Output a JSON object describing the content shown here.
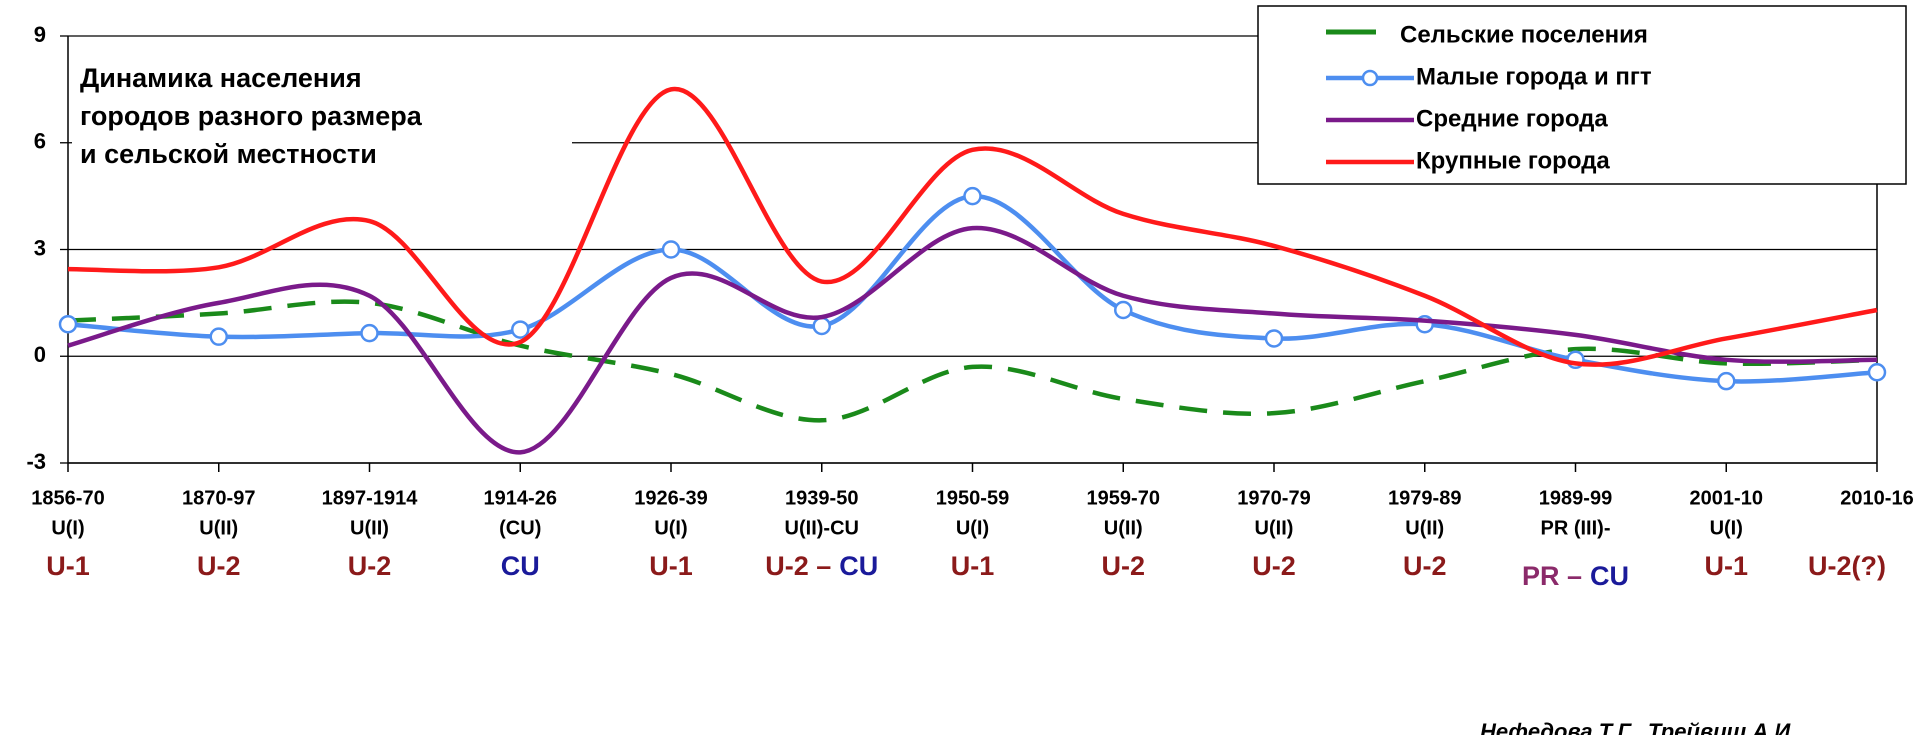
{
  "chart_data": {
    "type": "line",
    "title": [
      "Динамика населения",
      "городов разного размера",
      "и сельской местности"
    ],
    "categories": [
      "1856-70",
      "1870-97",
      "1897-1914",
      "1914-26",
      "1926-39",
      "1939-50",
      "1950-59",
      "1959-70",
      "1970-79",
      "1979-89",
      "1989-99",
      "2001-10",
      "2010-16"
    ],
    "type_labels": [
      "U(I)",
      "U(II)",
      "U(II)",
      "(CU)",
      "U(I)",
      "U(II)-CU",
      "U(I)",
      "U(II)",
      "U(II)",
      "U(II)",
      "PR (III)-",
      "U(I)",
      null
    ],
    "phase_labels": [
      [
        {
          "text": "U-1",
          "color": "#8b1a1a"
        }
      ],
      [
        {
          "text": "U-2",
          "color": "#8b1a1a"
        }
      ],
      [
        {
          "text": "U-2",
          "color": "#8b1a1a"
        }
      ],
      [
        {
          "text": "CU",
          "color": "#1a1a9a"
        }
      ],
      [
        {
          "text": "U-1",
          "color": "#8b1a1a"
        }
      ],
      [
        {
          "text": "U-2 –",
          "color": "#8b1a1a"
        },
        {
          "text": "CU",
          "color": "#1a1a9a"
        }
      ],
      [
        {
          "text": "U-1",
          "color": "#8b1a1a"
        }
      ],
      [
        {
          "text": "U-2",
          "color": "#8b1a1a"
        }
      ],
      [
        {
          "text": "U-2",
          "color": "#8b1a1a"
        }
      ],
      [
        {
          "text": "U-2",
          "color": "#8b1a1a"
        }
      ],
      [
        {
          "text": "PR –",
          "color": "#8b2a6a"
        },
        {
          "text": "CU",
          "color": "#1a1a9a"
        }
      ],
      [
        {
          "text": "U-1",
          "color": "#8b1a1a"
        }
      ],
      [
        {
          "text": "U-2(?)",
          "color": "#8b1a1a"
        }
      ]
    ],
    "series": [
      {
        "name": "Сельские поселения",
        "color": "#1a8a1a",
        "dashed": true,
        "markers": false,
        "values": [
          1.0,
          1.2,
          1.5,
          0.3,
          -0.5,
          -1.8,
          -0.3,
          -1.2,
          -1.6,
          -0.7,
          0.2,
          -0.2,
          -0.1
        ]
      },
      {
        "name": "Малые города и пгт",
        "color": "#4d8ef0",
        "dashed": false,
        "markers": true,
        "values": [
          0.9,
          0.55,
          0.65,
          0.75,
          3.0,
          0.85,
          4.5,
          1.3,
          0.5,
          0.9,
          -0.1,
          -0.7,
          -0.45
        ]
      },
      {
        "name": "Средние города",
        "color": "#7a1a8a",
        "dashed": false,
        "markers": false,
        "values": [
          0.3,
          1.5,
          1.7,
          -2.7,
          2.2,
          1.1,
          3.6,
          1.7,
          1.2,
          1.0,
          0.6,
          -0.1,
          -0.1
        ]
      },
      {
        "name": "Крупные города",
        "color": "#ff1a1a",
        "dashed": false,
        "markers": false,
        "values": [
          2.45,
          2.5,
          3.8,
          0.4,
          7.5,
          2.1,
          5.8,
          4.0,
          3.1,
          1.7,
          -0.2,
          0.5,
          1.3
        ]
      }
    ],
    "ylim": [
      -3,
      9
    ],
    "yticks": [
      9,
      6,
      3,
      0,
      -3
    ],
    "grid": true,
    "legend": "top-right",
    "source": "Нефедова Т.Г., Трейвиш А.И."
  }
}
